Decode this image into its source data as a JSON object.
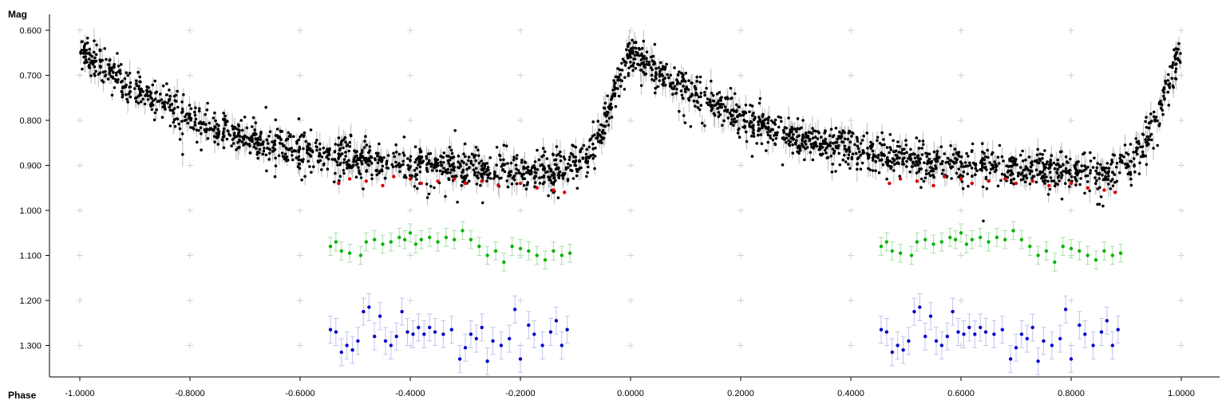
{
  "chart_data": {
    "type": "scatter",
    "title": "",
    "xlabel": "Phase",
    "ylabel": "Mag",
    "xlim": [
      -1.06,
      1.07
    ],
    "ylim": [
      1.37,
      0.575
    ],
    "y_inverted": true,
    "grid": "cross markers",
    "x_ticks": [
      -1.0,
      -0.8,
      -0.6,
      -0.4,
      -0.2,
      0.0,
      0.2,
      0.4,
      0.6,
      0.8,
      1.0
    ],
    "x_tick_labels": [
      "-1.0000",
      "-0.8000",
      "-0.6000",
      "-0.4000",
      "-0.2000",
      "0.0000",
      "0.2000",
      "0.4000",
      "0.6000",
      "0.8000",
      "1.0000"
    ],
    "y_ticks": [
      0.6,
      0.7,
      0.8,
      0.9,
      1.0,
      1.1,
      1.2,
      1.3
    ],
    "y_tick_labels": [
      "0.600",
      "0.700",
      "0.800",
      "0.900",
      "1.000",
      "1.100",
      "1.200",
      "1.300"
    ],
    "series": [
      {
        "color": "#000000",
        "errorbar_color": "#bdbdbd",
        "light_curve_knots": [
          [
            0.0,
            0.645
          ],
          [
            0.02,
            0.665
          ],
          [
            0.06,
            0.695
          ],
          [
            0.1,
            0.725
          ],
          [
            0.15,
            0.76
          ],
          [
            0.2,
            0.79
          ],
          [
            0.25,
            0.815
          ],
          [
            0.3,
            0.835
          ],
          [
            0.35,
            0.85
          ],
          [
            0.4,
            0.865
          ],
          [
            0.45,
            0.875
          ],
          [
            0.5,
            0.885
          ],
          [
            0.55,
            0.89
          ],
          [
            0.6,
            0.895
          ],
          [
            0.65,
            0.9
          ],
          [
            0.7,
            0.905
          ],
          [
            0.75,
            0.908
          ],
          [
            0.8,
            0.91
          ],
          [
            0.85,
            0.912
          ],
          [
            0.88,
            0.91
          ],
          [
            0.9,
            0.895
          ],
          [
            0.92,
            0.875
          ],
          [
            0.94,
            0.84
          ],
          [
            0.96,
            0.78
          ],
          [
            0.975,
            0.72
          ],
          [
            0.99,
            0.665
          ],
          [
            1.0,
            0.645
          ]
        ],
        "scatter_mag": 0.02,
        "points_per_cycle": 1300
      },
      {
        "color": "#e00000",
        "points": [
          [
            0.47,
            0.94
          ],
          [
            0.49,
            0.93
          ],
          [
            0.52,
            0.935
          ],
          [
            0.55,
            0.945
          ],
          [
            0.57,
            0.925
          ],
          [
            0.6,
            0.93
          ],
          [
            0.62,
            0.94
          ],
          [
            0.65,
            0.935
          ],
          [
            0.68,
            0.93
          ],
          [
            0.7,
            0.94
          ],
          [
            0.73,
            0.935
          ],
          [
            0.76,
            0.945
          ],
          [
            0.8,
            0.94
          ],
          [
            0.83,
            0.95
          ],
          [
            0.86,
            0.955
          ],
          [
            0.88,
            0.96
          ]
        ]
      },
      {
        "color": "#00b400",
        "errorbar_color": "#a8e0a8",
        "points": [
          [
            0.455,
            1.08
          ],
          [
            0.465,
            1.07
          ],
          [
            0.475,
            1.09
          ],
          [
            0.49,
            1.095
          ],
          [
            0.51,
            1.1
          ],
          [
            0.52,
            1.07
          ],
          [
            0.535,
            1.065
          ],
          [
            0.55,
            1.075
          ],
          [
            0.565,
            1.07
          ],
          [
            0.58,
            1.06
          ],
          [
            0.59,
            1.065
          ],
          [
            0.6,
            1.05
          ],
          [
            0.61,
            1.075
          ],
          [
            0.62,
            1.065
          ],
          [
            0.635,
            1.06
          ],
          [
            0.65,
            1.07
          ],
          [
            0.665,
            1.06
          ],
          [
            0.68,
            1.065
          ],
          [
            0.695,
            1.045
          ],
          [
            0.71,
            1.065
          ],
          [
            0.725,
            1.08
          ],
          [
            0.74,
            1.1
          ],
          [
            0.755,
            1.09
          ],
          [
            0.77,
            1.115
          ],
          [
            0.785,
            1.08
          ],
          [
            0.8,
            1.085
          ],
          [
            0.815,
            1.09
          ],
          [
            0.83,
            1.1
          ],
          [
            0.845,
            1.11
          ],
          [
            0.86,
            1.09
          ],
          [
            0.875,
            1.1
          ],
          [
            0.89,
            1.095
          ]
        ],
        "err": 0.02
      },
      {
        "color": "#0000cc",
        "errorbar_color": "#c2c2f0",
        "points": [
          [
            0.455,
            1.265
          ],
          [
            0.465,
            1.27
          ],
          [
            0.475,
            1.315
          ],
          [
            0.485,
            1.3
          ],
          [
            0.495,
            1.31
          ],
          [
            0.505,
            1.29
          ],
          [
            0.515,
            1.225
          ],
          [
            0.525,
            1.215
          ],
          [
            0.535,
            1.28
          ],
          [
            0.545,
            1.235
          ],
          [
            0.555,
            1.29
          ],
          [
            0.565,
            1.3
          ],
          [
            0.575,
            1.28
          ],
          [
            0.585,
            1.225
          ],
          [
            0.595,
            1.27
          ],
          [
            0.605,
            1.275
          ],
          [
            0.615,
            1.26
          ],
          [
            0.625,
            1.275
          ],
          [
            0.635,
            1.26
          ],
          [
            0.645,
            1.27
          ],
          [
            0.66,
            1.275
          ],
          [
            0.675,
            1.265
          ],
          [
            0.69,
            1.33
          ],
          [
            0.7,
            1.305
          ],
          [
            0.71,
            1.275
          ],
          [
            0.72,
            1.285
          ],
          [
            0.73,
            1.26
          ],
          [
            0.74,
            1.335
          ],
          [
            0.75,
            1.29
          ],
          [
            0.765,
            1.3
          ],
          [
            0.78,
            1.285
          ],
          [
            0.79,
            1.22
          ],
          [
            0.8,
            1.33
          ],
          [
            0.815,
            1.255
          ],
          [
            0.825,
            1.275
          ],
          [
            0.84,
            1.3
          ],
          [
            0.855,
            1.27
          ],
          [
            0.865,
            1.245
          ],
          [
            0.875,
            1.3
          ],
          [
            0.885,
            1.265
          ]
        ],
        "err": 0.03
      }
    ]
  }
}
